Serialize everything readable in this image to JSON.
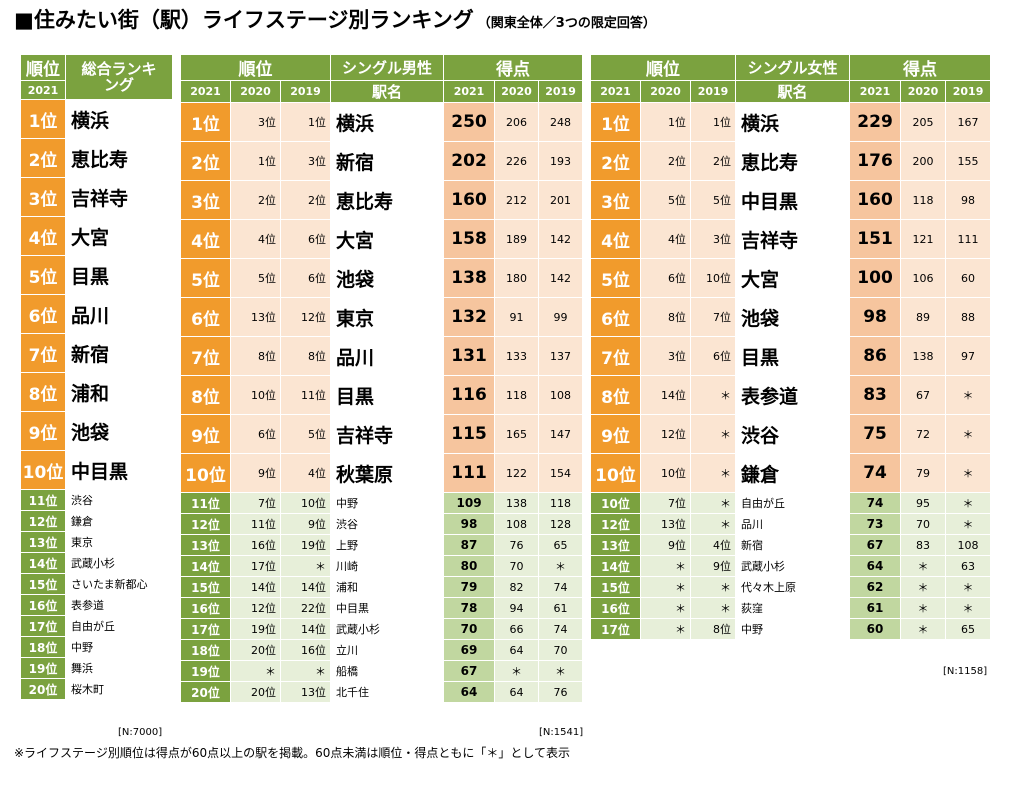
{
  "title": "■住みたい街（駅）ライフステージ別ランキング",
  "subtitle": "（関東全体／3つの限定回答）",
  "headers": {
    "rank": "順位",
    "overall_ranking": "総合ランキング",
    "single_male": "シングル男性",
    "single_female": "シングル女性",
    "score": "得点",
    "station_name": "駅名",
    "years": [
      "2021",
      "2020",
      "2019"
    ]
  },
  "overall": {
    "rows": [
      {
        "rank": "1位",
        "station": "横浜"
      },
      {
        "rank": "2位",
        "station": "恵比寿"
      },
      {
        "rank": "3位",
        "station": "吉祥寺"
      },
      {
        "rank": "4位",
        "station": "大宮"
      },
      {
        "rank": "5位",
        "station": "目黒"
      },
      {
        "rank": "6位",
        "station": "品川"
      },
      {
        "rank": "7位",
        "station": "新宿"
      },
      {
        "rank": "8位",
        "station": "浦和"
      },
      {
        "rank": "9位",
        "station": "池袋"
      },
      {
        "rank": "10位",
        "station": "中目黒"
      },
      {
        "rank": "11位",
        "station": "渋谷"
      },
      {
        "rank": "12位",
        "station": "鎌倉"
      },
      {
        "rank": "13位",
        "station": "東京"
      },
      {
        "rank": "14位",
        "station": "武蔵小杉"
      },
      {
        "rank": "15位",
        "station": "さいたま新都心"
      },
      {
        "rank": "16位",
        "station": "表参道"
      },
      {
        "rank": "17位",
        "station": "自由が丘"
      },
      {
        "rank": "18位",
        "station": "中野"
      },
      {
        "rank": "19位",
        "station": "舞浜"
      },
      {
        "rank": "20位",
        "station": "桜木町"
      }
    ],
    "note": "[N:7000]"
  },
  "male": {
    "rows": [
      {
        "rank": "1位",
        "r2020": "3位",
        "r2019": "1位",
        "station": "横浜",
        "s2021": "250",
        "s2020": "206",
        "s2019": "248"
      },
      {
        "rank": "2位",
        "r2020": "1位",
        "r2019": "3位",
        "station": "新宿",
        "s2021": "202",
        "s2020": "226",
        "s2019": "193"
      },
      {
        "rank": "3位",
        "r2020": "2位",
        "r2019": "2位",
        "station": "恵比寿",
        "s2021": "160",
        "s2020": "212",
        "s2019": "201"
      },
      {
        "rank": "4位",
        "r2020": "4位",
        "r2019": "6位",
        "station": "大宮",
        "s2021": "158",
        "s2020": "189",
        "s2019": "142"
      },
      {
        "rank": "5位",
        "r2020": "5位",
        "r2019": "6位",
        "station": "池袋",
        "s2021": "138",
        "s2020": "180",
        "s2019": "142"
      },
      {
        "rank": "6位",
        "r2020": "13位",
        "r2019": "12位",
        "station": "東京",
        "s2021": "132",
        "s2020": "91",
        "s2019": "99"
      },
      {
        "rank": "7位",
        "r2020": "8位",
        "r2019": "8位",
        "station": "品川",
        "s2021": "131",
        "s2020": "133",
        "s2019": "137"
      },
      {
        "rank": "8位",
        "r2020": "10位",
        "r2019": "11位",
        "station": "目黒",
        "s2021": "116",
        "s2020": "118",
        "s2019": "108"
      },
      {
        "rank": "9位",
        "r2020": "6位",
        "r2019": "5位",
        "station": "吉祥寺",
        "s2021": "115",
        "s2020": "165",
        "s2019": "147"
      },
      {
        "rank": "10位",
        "r2020": "9位",
        "r2019": "4位",
        "station": "秋葉原",
        "s2021": "111",
        "s2020": "122",
        "s2019": "154"
      },
      {
        "rank": "11位",
        "r2020": "7位",
        "r2019": "10位",
        "station": "中野",
        "s2021": "109",
        "s2020": "138",
        "s2019": "118"
      },
      {
        "rank": "12位",
        "r2020": "11位",
        "r2019": "9位",
        "station": "渋谷",
        "s2021": "98",
        "s2020": "108",
        "s2019": "128"
      },
      {
        "rank": "13位",
        "r2020": "16位",
        "r2019": "19位",
        "station": "上野",
        "s2021": "87",
        "s2020": "76",
        "s2019": "65"
      },
      {
        "rank": "14位",
        "r2020": "17位",
        "r2019": "＊",
        "station": "川崎",
        "s2021": "80",
        "s2020": "70",
        "s2019": "＊"
      },
      {
        "rank": "15位",
        "r2020": "14位",
        "r2019": "14位",
        "station": "浦和",
        "s2021": "79",
        "s2020": "82",
        "s2019": "74"
      },
      {
        "rank": "16位",
        "r2020": "12位",
        "r2019": "22位",
        "station": "中目黒",
        "s2021": "78",
        "s2020": "94",
        "s2019": "61"
      },
      {
        "rank": "17位",
        "r2020": "19位",
        "r2019": "14位",
        "station": "武蔵小杉",
        "s2021": "70",
        "s2020": "66",
        "s2019": "74"
      },
      {
        "rank": "18位",
        "r2020": "20位",
        "r2019": "16位",
        "station": "立川",
        "s2021": "69",
        "s2020": "64",
        "s2019": "70"
      },
      {
        "rank": "19位",
        "r2020": "＊",
        "r2019": "＊",
        "station": "船橋",
        "s2021": "67",
        "s2020": "＊",
        "s2019": "＊"
      },
      {
        "rank": "20位",
        "r2020": "20位",
        "r2019": "13位",
        "station": "北千住",
        "s2021": "64",
        "s2020": "64",
        "s2019": "76"
      }
    ],
    "note": "[N:1541]"
  },
  "female": {
    "rows": [
      {
        "rank": "1位",
        "r2020": "1位",
        "r2019": "1位",
        "station": "横浜",
        "s2021": "229",
        "s2020": "205",
        "s2019": "167"
      },
      {
        "rank": "2位",
        "r2020": "2位",
        "r2019": "2位",
        "station": "恵比寿",
        "s2021": "176",
        "s2020": "200",
        "s2019": "155"
      },
      {
        "rank": "3位",
        "r2020": "5位",
        "r2019": "5位",
        "station": "中目黒",
        "s2021": "160",
        "s2020": "118",
        "s2019": "98"
      },
      {
        "rank": "4位",
        "r2020": "4位",
        "r2019": "3位",
        "station": "吉祥寺",
        "s2021": "151",
        "s2020": "121",
        "s2019": "111"
      },
      {
        "rank": "5位",
        "r2020": "6位",
        "r2019": "10位",
        "station": "大宮",
        "s2021": "100",
        "s2020": "106",
        "s2019": "60"
      },
      {
        "rank": "6位",
        "r2020": "8位",
        "r2019": "7位",
        "station": "池袋",
        "s2021": "98",
        "s2020": "89",
        "s2019": "88"
      },
      {
        "rank": "7位",
        "r2020": "3位",
        "r2019": "6位",
        "station": "目黒",
        "s2021": "86",
        "s2020": "138",
        "s2019": "97"
      },
      {
        "rank": "8位",
        "r2020": "14位",
        "r2019": "＊",
        "station": "表参道",
        "s2021": "83",
        "s2020": "67",
        "s2019": "＊"
      },
      {
        "rank": "9位",
        "r2020": "12位",
        "r2019": "＊",
        "station": "渋谷",
        "s2021": "75",
        "s2020": "72",
        "s2019": "＊"
      },
      {
        "rank": "10位",
        "r2020": "10位",
        "r2019": "＊",
        "station": "鎌倉",
        "s2021": "74",
        "s2020": "79",
        "s2019": "＊"
      },
      {
        "rank": "10位",
        "r2020": "7位",
        "r2019": "＊",
        "station": "自由が丘",
        "s2021": "74",
        "s2020": "95",
        "s2019": "＊"
      },
      {
        "rank": "12位",
        "r2020": "13位",
        "r2019": "＊",
        "station": "品川",
        "s2021": "73",
        "s2020": "70",
        "s2019": "＊"
      },
      {
        "rank": "13位",
        "r2020": "9位",
        "r2019": "4位",
        "station": "新宿",
        "s2021": "67",
        "s2020": "83",
        "s2019": "108"
      },
      {
        "rank": "14位",
        "r2020": "＊",
        "r2019": "9位",
        "station": "武蔵小杉",
        "s2021": "64",
        "s2020": "＊",
        "s2019": "63"
      },
      {
        "rank": "15位",
        "r2020": "＊",
        "r2019": "＊",
        "station": "代々木上原",
        "s2021": "62",
        "s2020": "＊",
        "s2019": "＊"
      },
      {
        "rank": "16位",
        "r2020": "＊",
        "r2019": "＊",
        "station": "荻窪",
        "s2021": "61",
        "s2020": "＊",
        "s2019": "＊"
      },
      {
        "rank": "17位",
        "r2020": "＊",
        "r2019": "8位",
        "station": "中野",
        "s2021": "60",
        "s2020": "＊",
        "s2019": "65"
      }
    ],
    "note": "[N:1158]"
  },
  "footnote": "※ライフステージ別順位は得点が60点以上の駅を掲載。60点未満は順位・得点ともに「＊」として表示",
  "colors": {
    "green": "#7ba23f",
    "orange": "#f19b2c",
    "peach": "#fbe5d2",
    "peach_dark": "#f6c59e",
    "light_green": "#e7efd9",
    "mid_green": "#c1d7a0"
  }
}
